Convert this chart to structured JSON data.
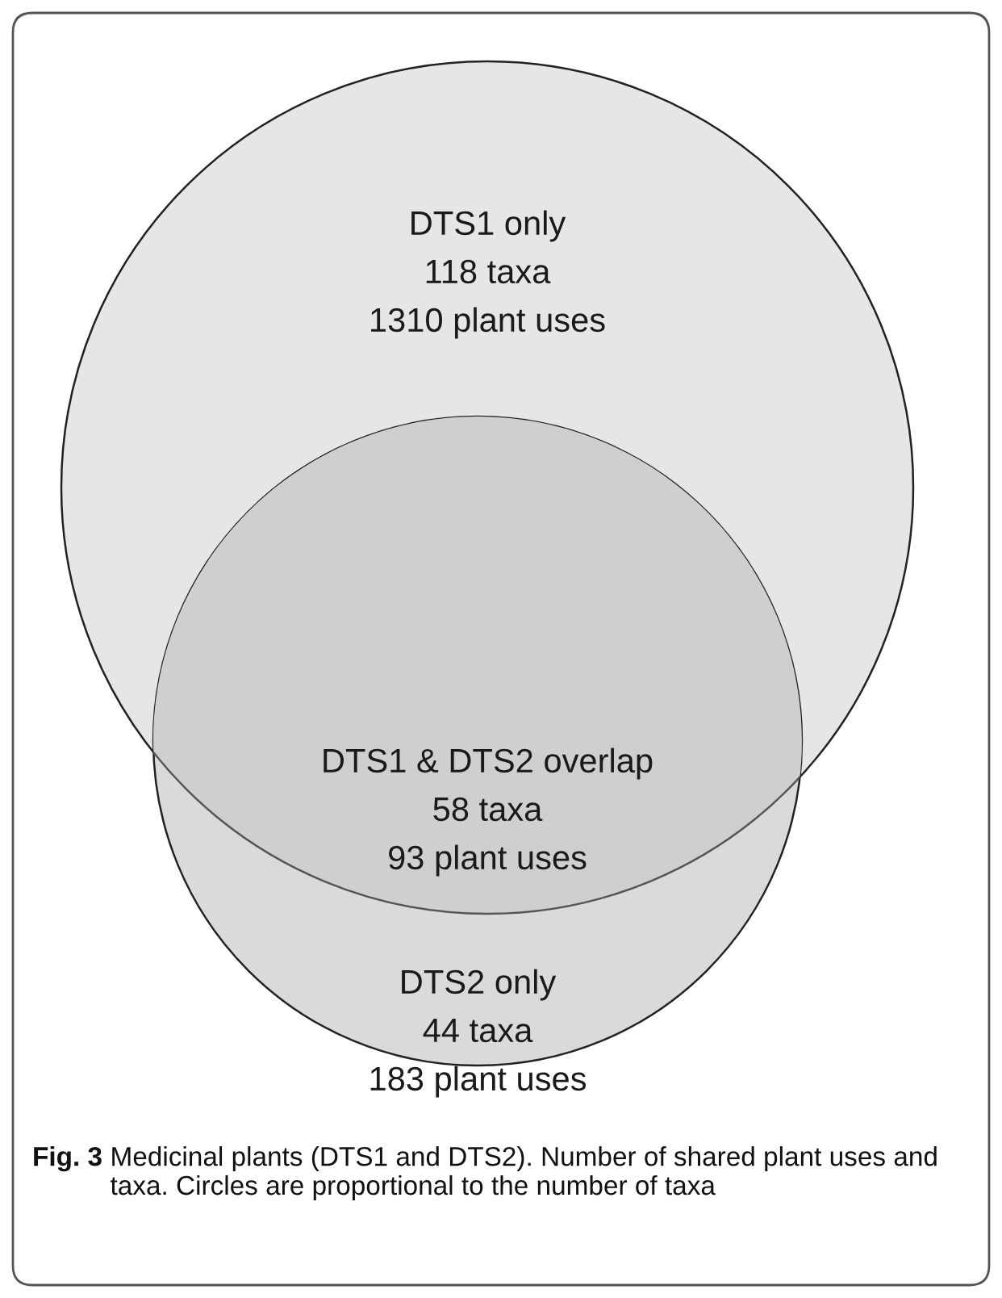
{
  "chart_data": {
    "type": "other",
    "categories": [
      "DTS1 only",
      "DTS1 & DTS2 overlap",
      "DTS2 only"
    ],
    "colors": [
      "#e6e6e6",
      "#cfcfcf",
      "#dadada"
    ],
    "series": [
      {
        "values": [
          118,
          58,
          44
        ],
        "value_labels": [
          "118 taxa",
          "58 taxa",
          "44 taxa"
        ]
      },
      {
        "values": [
          1310,
          93,
          183
        ],
        "value_labels": [
          "1310 plant uses",
          "93 plant uses",
          "183 plant uses"
        ]
      }
    ],
    "annotations": [
      "Fig. 3",
      "Medicinal plants (DTS1 and DTS2). Number of shared plant uses and taxa. Circles are proportional to the number of taxa"
    ]
  }
}
